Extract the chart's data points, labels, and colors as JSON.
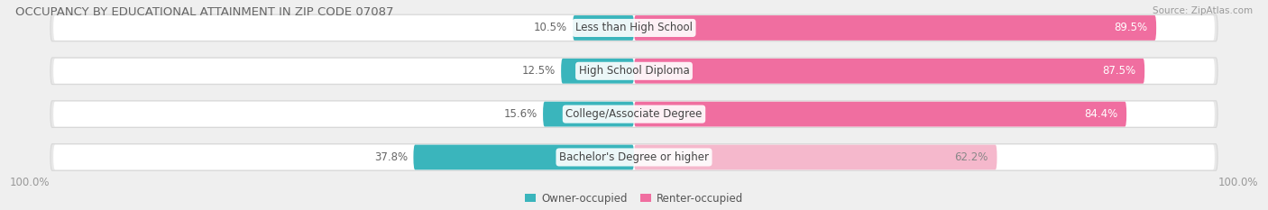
{
  "title": "OCCUPANCY BY EDUCATIONAL ATTAINMENT IN ZIP CODE 07087",
  "source": "Source: ZipAtlas.com",
  "categories": [
    "Less than High School",
    "High School Diploma",
    "College/Associate Degree",
    "Bachelor's Degree or higher"
  ],
  "owner_pct": [
    10.5,
    12.5,
    15.6,
    37.8
  ],
  "renter_pct": [
    89.5,
    87.5,
    84.4,
    62.2
  ],
  "owner_color": "#3ab5bc",
  "renter_color_top3": "#f06ea0",
  "renter_color_last": "#f5b8cc",
  "bg_color": "#efefef",
  "bar_bg_color": "#e8e8e8",
  "bar_inner_color": "#ffffff",
  "title_fontsize": 9.5,
  "source_fontsize": 7.5,
  "label_fontsize": 8.5,
  "axis_label_fontsize": 8.5,
  "legend_fontsize": 8.5,
  "owner_label": "Owner-occupied",
  "renter_label": "Renter-occupied",
  "left_axis_label": "100.0%",
  "right_axis_label": "100.0%",
  "pct_label_color_owner": "#666666",
  "pct_label_color_renter_top3": "#ffffff",
  "pct_label_color_renter_last": "#888888",
  "cat_label_color": "#444444"
}
